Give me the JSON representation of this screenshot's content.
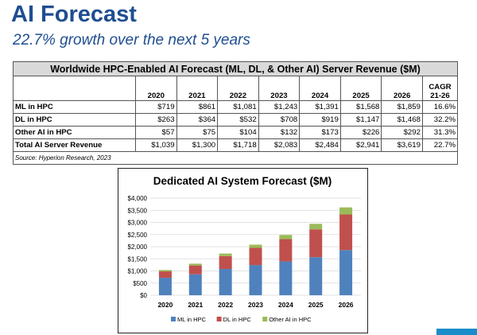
{
  "header": {
    "title": "AI Forecast",
    "subtitle": "22.7% growth over the next 5 years"
  },
  "table": {
    "caption": "Worldwide HPC-Enabled AI Forecast (ML, DL, & Other AI) Server Revenue ($M)",
    "columns": [
      "2020",
      "2021",
      "2022",
      "2023",
      "2024",
      "2025",
      "2026"
    ],
    "cagr_header_line1": "CAGR",
    "cagr_header_line2": "21-26",
    "rows": [
      {
        "label": "ML in HPC",
        "values": [
          "$719",
          "$861",
          "$1,081",
          "$1,243",
          "$1,391",
          "$1,568",
          "$1,859"
        ],
        "cagr": "16.6%"
      },
      {
        "label": "DL in HPC",
        "values": [
          "$263",
          "$364",
          "$532",
          "$708",
          "$919",
          "$1,147",
          "$1,468"
        ],
        "cagr": "32.2%"
      },
      {
        "label": "Other AI in HPC",
        "values": [
          "$57",
          "$75",
          "$104",
          "$132",
          "$173",
          "$226",
          "$292"
        ],
        "cagr": "31.3%"
      },
      {
        "label": "Total AI Server Revenue",
        "values": [
          "$1,039",
          "$1,300",
          "$1,718",
          "$2,083",
          "$2,484",
          "$2,941",
          "$3,619"
        ],
        "cagr": "22.7%"
      }
    ],
    "source": "Source: Hyperion Research, 2023"
  },
  "chart_data": {
    "type": "bar",
    "stacked": true,
    "title": "Dedicated AI System Forecast ($M)",
    "categories": [
      "2020",
      "2021",
      "2022",
      "2023",
      "2024",
      "2025",
      "2026"
    ],
    "series": [
      {
        "name": "ML in HPC",
        "color": "#4f81bd",
        "values": [
          719,
          861,
          1081,
          1243,
          1391,
          1568,
          1859
        ]
      },
      {
        "name": "DL in HPC",
        "color": "#c0504d",
        "values": [
          263,
          364,
          532,
          708,
          919,
          1147,
          1468
        ]
      },
      {
        "name": "Other AI in HPC",
        "color": "#9bbb59",
        "values": [
          57,
          75,
          104,
          132,
          173,
          226,
          292
        ]
      }
    ],
    "ylim": [
      0,
      4000
    ],
    "yticks": [
      0,
      500,
      1000,
      1500,
      2000,
      2500,
      3000,
      3500,
      4000
    ],
    "ytick_labels": [
      "$0",
      "$500",
      "$1,000",
      "$1,500",
      "$2,000",
      "$2,500",
      "$3,000",
      "$3,500",
      "$4,000"
    ],
    "grid": true,
    "legend_position": "bottom"
  }
}
